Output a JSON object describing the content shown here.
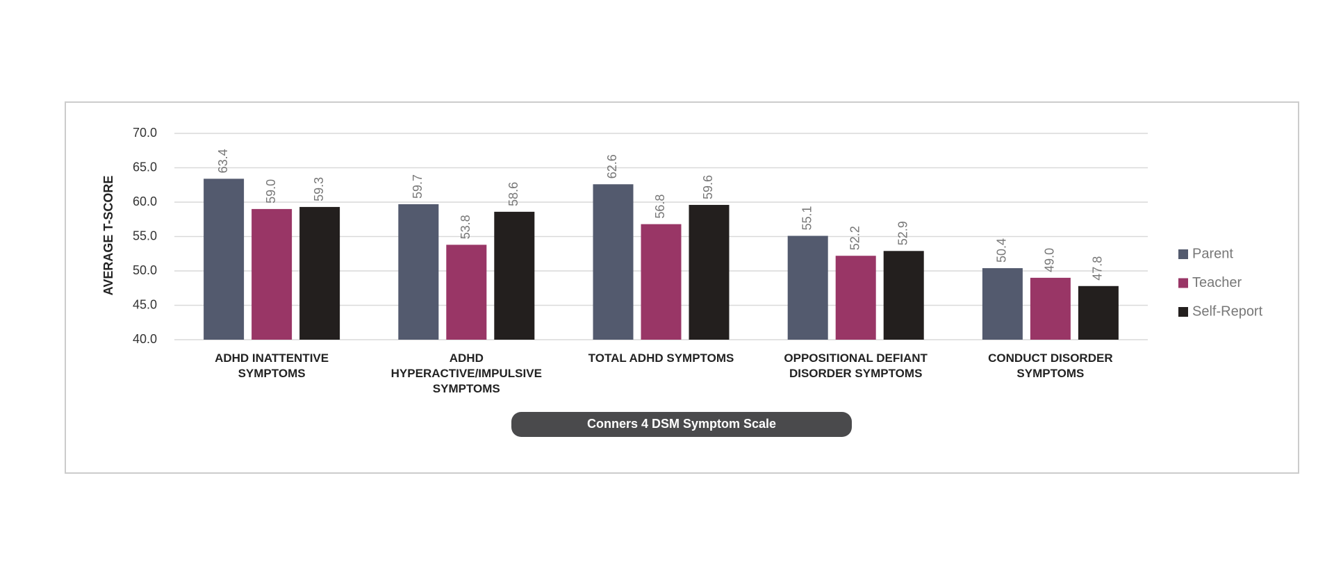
{
  "chart_data": {
    "type": "bar",
    "y_label": "AVERAGE T-SCORE",
    "x_label": "Conners 4 DSM Symptom Scale",
    "categories": [
      "ADHD INATTENTIVE SYMPTOMS",
      "ADHD HYPERACTIVE/IMPULSIVE SYMPTOMS",
      "TOTAL ADHD SYMPTOMS",
      "OPPOSITIONAL DEFIANT DISORDER SYMPTOMS",
      "CONDUCT DISORDER SYMPTOMS"
    ],
    "series": [
      {
        "name": "Parent",
        "color": "#535a6e",
        "values": [
          63.4,
          59.7,
          62.6,
          55.1,
          50.4
        ],
        "value_labels": [
          "63.4",
          "59.7",
          "62.6",
          "55.1",
          "50.4"
        ]
      },
      {
        "name": "Teacher",
        "color": "#993666",
        "values": [
          59,
          53.8,
          56.8,
          52.2,
          49
        ],
        "value_labels": [
          "59.0",
          "53.8",
          "56.8",
          "52.2",
          "49.0"
        ]
      },
      {
        "name": "Self-Report",
        "color": "#231f1e",
        "values": [
          59.3,
          58.6,
          59.6,
          52.9,
          47.8
        ],
        "value_labels": [
          "59.3",
          "58.6",
          "59.6",
          "52.9",
          "47.8"
        ]
      }
    ],
    "ylim": [
      40,
      70
    ],
    "yticks": [
      {
        "value": 40,
        "label": "40.0"
      },
      {
        "value": 45,
        "label": "45.0"
      },
      {
        "value": 50,
        "label": "50.0"
      },
      {
        "value": 55,
        "label": "55.0"
      },
      {
        "value": 60,
        "label": "60.0"
      },
      {
        "value": 65,
        "label": "65.0"
      },
      {
        "value": 70,
        "label": "70.0"
      }
    ],
    "grid": true,
    "legend": "right"
  }
}
